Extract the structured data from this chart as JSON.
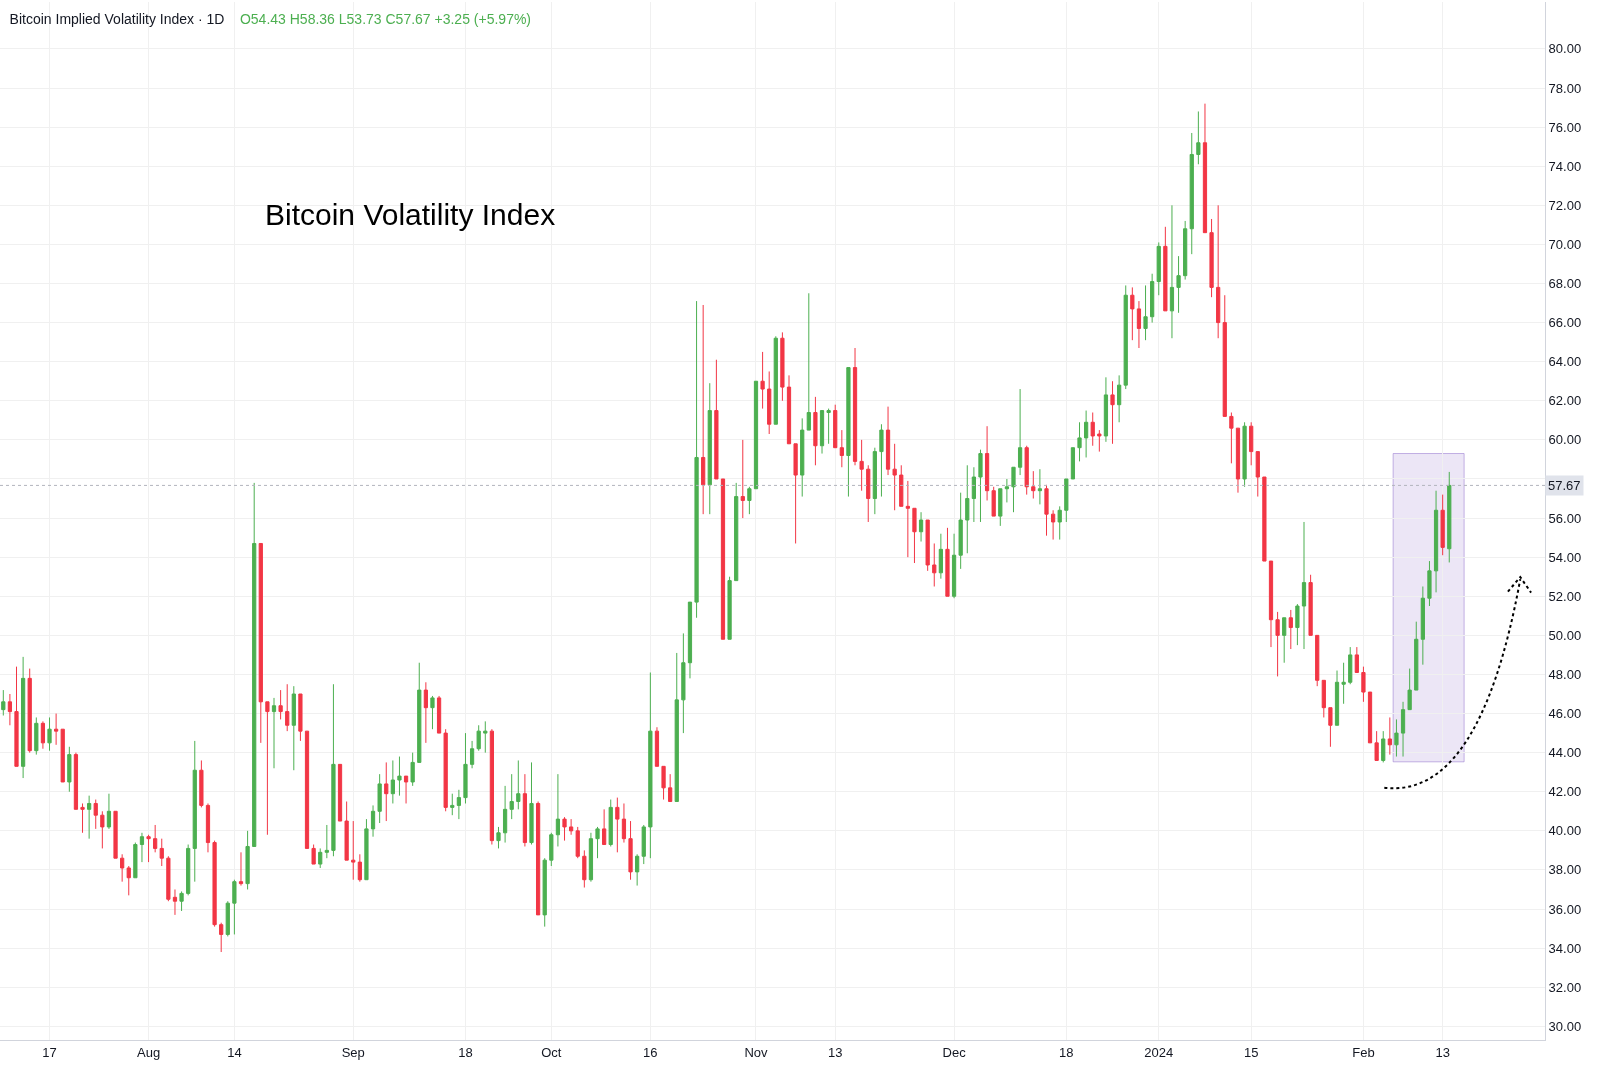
{
  "chart_data": {
    "type": "candlestick",
    "title": "Bitcoin Implied Volatility Index · 1D",
    "subtitle": "O54.43 H58.36 L53.73 C57.67 +3.25 (+5.97%)",
    "annotations": [
      "Bitcoin Volatility Index"
    ],
    "x": [
      "2023-07-10",
      "2023-07-11",
      "2023-07-12",
      "2023-07-13",
      "2023-07-14",
      "2023-07-15",
      "2023-07-16",
      "2023-07-17",
      "2023-07-18",
      "2023-07-19",
      "2023-07-20",
      "2023-07-21",
      "2023-07-22",
      "2023-07-23",
      "2023-07-24",
      "2023-07-25",
      "2023-07-26",
      "2023-07-27",
      "2023-07-28",
      "2023-07-29",
      "2023-07-30",
      "2023-07-31",
      "2023-08-01",
      "2023-08-02",
      "2023-08-03",
      "2023-08-04",
      "2023-08-05",
      "2023-08-06",
      "2023-08-07",
      "2023-08-08",
      "2023-08-09",
      "2023-08-10",
      "2023-08-11",
      "2023-08-12",
      "2023-08-13",
      "2023-08-14",
      "2023-08-15",
      "2023-08-16",
      "2023-08-17",
      "2023-08-18",
      "2023-08-19",
      "2023-08-20",
      "2023-08-21",
      "2023-08-22",
      "2023-08-23",
      "2023-08-24",
      "2023-08-25",
      "2023-08-26",
      "2023-08-27",
      "2023-08-28",
      "2023-08-29",
      "2023-08-30",
      "2023-08-31",
      "2023-09-01",
      "2023-09-02",
      "2023-09-03",
      "2023-09-04",
      "2023-09-05",
      "2023-09-06",
      "2023-09-07",
      "2023-09-08",
      "2023-09-09",
      "2023-09-10",
      "2023-09-11",
      "2023-09-12",
      "2023-09-13",
      "2023-09-14",
      "2023-09-15",
      "2023-09-16",
      "2023-09-17",
      "2023-09-18",
      "2023-09-19",
      "2023-09-20",
      "2023-09-21",
      "2023-09-22",
      "2023-09-23",
      "2023-09-24",
      "2023-09-25",
      "2023-09-26",
      "2023-09-27",
      "2023-09-28",
      "2023-09-29",
      "2023-09-30",
      "2023-10-01",
      "2023-10-02",
      "2023-10-03",
      "2023-10-04",
      "2023-10-05",
      "2023-10-06",
      "2023-10-07",
      "2023-10-08",
      "2023-10-09",
      "2023-10-10",
      "2023-10-11",
      "2023-10-12",
      "2023-10-13",
      "2023-10-14",
      "2023-10-15",
      "2023-10-16",
      "2023-10-17",
      "2023-10-18",
      "2023-10-19",
      "2023-10-20",
      "2023-10-21",
      "2023-10-22",
      "2023-10-23",
      "2023-10-24",
      "2023-10-25",
      "2023-10-26",
      "2023-10-27",
      "2023-10-28",
      "2023-10-29",
      "2023-10-30",
      "2023-10-31",
      "2023-11-01",
      "2023-11-02",
      "2023-11-03",
      "2023-11-04",
      "2023-11-05",
      "2023-11-06",
      "2023-11-07",
      "2023-11-08",
      "2023-11-09",
      "2023-11-10",
      "2023-11-11",
      "2023-11-12",
      "2023-11-13",
      "2023-11-14",
      "2023-11-15",
      "2023-11-16",
      "2023-11-17",
      "2023-11-18",
      "2023-11-19",
      "2023-11-20",
      "2023-11-21",
      "2023-11-22",
      "2023-11-23",
      "2023-11-24",
      "2023-11-25",
      "2023-11-26",
      "2023-11-27",
      "2023-11-28",
      "2023-11-29",
      "2023-11-30",
      "2023-12-01",
      "2023-12-02",
      "2023-12-03",
      "2023-12-04",
      "2023-12-05",
      "2023-12-06",
      "2023-12-07",
      "2023-12-08",
      "2023-12-09",
      "2023-12-10",
      "2023-12-11",
      "2023-12-12",
      "2023-12-13",
      "2023-12-14",
      "2023-12-15",
      "2023-12-16",
      "2023-12-17",
      "2023-12-18",
      "2023-12-19",
      "2023-12-20",
      "2023-12-21",
      "2023-12-22",
      "2023-12-23",
      "2023-12-24",
      "2023-12-25",
      "2023-12-26",
      "2023-12-27",
      "2023-12-28",
      "2023-12-29",
      "2023-12-30",
      "2023-12-31",
      "2024-01-01",
      "2024-01-02",
      "2024-01-03",
      "2024-01-04",
      "2024-01-05",
      "2024-01-06",
      "2024-01-07",
      "2024-01-08",
      "2024-01-09",
      "2024-01-10",
      "2024-01-11",
      "2024-01-12",
      "2024-01-13",
      "2024-01-14",
      "2024-01-15",
      "2024-01-16",
      "2024-01-17",
      "2024-01-18",
      "2024-01-19",
      "2024-01-20",
      "2024-01-21",
      "2024-01-22",
      "2024-01-23",
      "2024-01-24",
      "2024-01-25",
      "2024-01-26",
      "2024-01-27",
      "2024-01-28",
      "2024-01-29",
      "2024-01-30",
      "2024-01-31",
      "2024-02-01",
      "2024-02-02",
      "2024-02-03",
      "2024-02-04",
      "2024-02-05",
      "2024-02-06",
      "2024-02-07",
      "2024-02-08",
      "2024-02-09",
      "2024-02-10",
      "2024-02-11",
      "2024-02-12",
      "2024-02-13",
      "2024-02-14"
    ],
    "ohlc": [
      [
        46.2,
        47.2,
        45.9,
        46.6
      ],
      [
        46.6,
        47.0,
        45.4,
        46.1
      ],
      [
        46.1,
        48.4,
        43.3,
        43.3
      ],
      [
        43.3,
        48.9,
        42.7,
        47.8
      ],
      [
        47.8,
        48.3,
        44.0,
        44.1
      ],
      [
        44.1,
        45.8,
        43.9,
        45.5
      ],
      [
        45.5,
        45.6,
        44.2,
        44.5
      ],
      [
        44.5,
        45.8,
        44.1,
        45.2
      ],
      [
        45.2,
        46.0,
        44.4,
        45.1
      ],
      [
        45.2,
        45.2,
        42.5,
        42.5
      ],
      [
        42.5,
        44.3,
        42.0,
        43.9
      ],
      [
        43.9,
        44.0,
        41.1,
        41.1
      ],
      [
        41.2,
        41.4,
        39.9,
        41.1
      ],
      [
        41.1,
        41.8,
        39.6,
        41.4
      ],
      [
        41.4,
        41.6,
        40.1,
        40.8
      ],
      [
        40.8,
        41.0,
        39.1,
        40.2
      ],
      [
        40.2,
        41.9,
        40.1,
        41.0
      ],
      [
        41.0,
        41.0,
        38.6,
        38.6
      ],
      [
        38.6,
        38.8,
        37.4,
        38.1
      ],
      [
        38.1,
        38.2,
        36.7,
        37.6
      ],
      [
        37.6,
        39.4,
        37.6,
        39.3
      ],
      [
        39.3,
        39.9,
        38.4,
        39.7
      ],
      [
        39.7,
        39.8,
        38.4,
        39.6
      ],
      [
        39.6,
        40.3,
        38.9,
        39.1
      ],
      [
        39.1,
        39.6,
        38.2,
        38.6
      ],
      [
        38.6,
        38.7,
        36.4,
        36.5
      ],
      [
        36.6,
        37.0,
        35.7,
        36.4
      ],
      [
        36.4,
        36.9,
        35.9,
        36.8
      ],
      [
        36.8,
        39.3,
        36.7,
        39.1
      ],
      [
        39.1,
        44.6,
        37.4,
        43.1
      ],
      [
        43.1,
        43.6,
        41.2,
        41.3
      ],
      [
        41.3,
        41.4,
        38.9,
        39.4
      ],
      [
        39.4,
        39.5,
        35.1,
        35.2
      ],
      [
        35.2,
        35.3,
        33.8,
        34.7
      ],
      [
        34.7,
        36.4,
        34.6,
        36.3
      ],
      [
        36.3,
        37.5,
        34.7,
        37.4
      ],
      [
        37.4,
        38.9,
        37.2,
        37.3
      ],
      [
        37.3,
        40.0,
        37.0,
        39.2
      ],
      [
        39.2,
        57.8,
        39.2,
        54.7
      ],
      [
        54.7,
        54.7,
        44.5,
        46.6
      ],
      [
        46.6,
        46.6,
        39.8,
        46.1
      ],
      [
        46.1,
        46.8,
        43.2,
        46.4
      ],
      [
        46.4,
        47.2,
        45.7,
        46.1
      ],
      [
        46.1,
        47.5,
        45.1,
        45.4
      ],
      [
        45.4,
        47.4,
        43.1,
        47.0
      ],
      [
        47.0,
        47.0,
        44.6,
        45.1
      ],
      [
        45.1,
        45.1,
        39.1,
        39.1
      ],
      [
        39.1,
        39.3,
        38.3,
        38.3
      ],
      [
        38.3,
        39.1,
        38.1,
        38.9
      ],
      [
        38.9,
        40.3,
        38.6,
        39.0
      ],
      [
        39.0,
        47.5,
        38.7,
        43.4
      ],
      [
        43.4,
        43.4,
        40.5,
        40.5
      ],
      [
        40.5,
        41.5,
        38.5,
        38.5
      ],
      [
        38.5,
        40.5,
        37.5,
        38.4
      ],
      [
        38.4,
        38.8,
        37.4,
        37.5
      ],
      [
        37.5,
        40.6,
        37.5,
        40.1
      ],
      [
        40.1,
        41.3,
        39.7,
        41.0
      ],
      [
        41.0,
        42.9,
        40.4,
        42.4
      ],
      [
        42.4,
        43.5,
        40.5,
        41.9
      ],
      [
        41.9,
        43.6,
        41.4,
        42.6
      ],
      [
        42.6,
        43.8,
        41.8,
        42.8
      ],
      [
        42.8,
        42.8,
        41.4,
        42.5
      ],
      [
        42.5,
        44.0,
        42.3,
        43.5
      ],
      [
        43.5,
        48.6,
        43.5,
        47.2
      ],
      [
        47.2,
        47.6,
        44.5,
        46.3
      ],
      [
        46.3,
        46.9,
        45.2,
        46.8
      ],
      [
        46.8,
        46.9,
        45.0,
        45.0
      ],
      [
        45.0,
        45.2,
        41.0,
        41.2
      ],
      [
        41.2,
        41.9,
        40.8,
        41.3
      ],
      [
        41.3,
        42.1,
        40.6,
        41.7
      ],
      [
        41.7,
        45.0,
        41.4,
        43.4
      ],
      [
        43.4,
        44.6,
        43.2,
        44.2
      ],
      [
        44.2,
        45.4,
        44.1,
        45.1
      ],
      [
        45.0,
        45.6,
        44.0,
        45.1
      ],
      [
        45.1,
        45.2,
        39.3,
        39.5
      ],
      [
        39.5,
        40.2,
        39.1,
        39.9
      ],
      [
        39.9,
        42.3,
        39.4,
        41.1
      ],
      [
        41.1,
        42.9,
        40.6,
        41.5
      ],
      [
        41.5,
        43.6,
        41.1,
        41.9
      ],
      [
        41.9,
        42.9,
        39.2,
        39.4
      ],
      [
        39.4,
        43.5,
        39.3,
        41.4
      ],
      [
        41.4,
        41.5,
        35.7,
        35.7
      ],
      [
        35.7,
        38.6,
        35.1,
        38.5
      ],
      [
        38.5,
        39.9,
        38.2,
        39.8
      ],
      [
        39.8,
        42.9,
        39.2,
        40.6
      ],
      [
        40.6,
        40.7,
        39.5,
        40.2
      ],
      [
        40.2,
        40.6,
        39.8,
        40.0
      ],
      [
        40.0,
        40.2,
        38.6,
        38.7
      ],
      [
        38.7,
        39.0,
        37.1,
        37.5
      ],
      [
        37.5,
        39.9,
        37.4,
        39.6
      ],
      [
        39.6,
        40.2,
        38.6,
        40.1
      ],
      [
        40.1,
        41.1,
        39.3,
        39.3
      ],
      [
        39.3,
        41.6,
        39.2,
        41.2
      ],
      [
        41.2,
        41.7,
        38.9,
        40.6
      ],
      [
        40.6,
        41.4,
        39.4,
        39.6
      ],
      [
        39.6,
        40.5,
        37.5,
        37.9
      ],
      [
        37.9,
        38.8,
        37.2,
        38.7
      ],
      [
        38.7,
        40.3,
        38.3,
        40.2
      ],
      [
        40.2,
        48.1,
        38.6,
        45.1
      ],
      [
        45.1,
        45.3,
        43.3,
        43.3
      ],
      [
        43.3,
        43.3,
        41.6,
        42.2
      ],
      [
        42.2,
        42.9,
        41.5,
        41.5
      ],
      [
        41.5,
        49.1,
        41.5,
        46.7
      ],
      [
        46.7,
        50.1,
        45.0,
        48.6
      ],
      [
        48.6,
        51.7,
        47.8,
        51.7
      ],
      [
        51.7,
        67.1,
        50.9,
        59.1
      ],
      [
        59.1,
        66.9,
        56.2,
        57.7
      ],
      [
        57.7,
        62.9,
        56.2,
        61.5
      ],
      [
        61.5,
        64.1,
        58.0,
        58.0
      ],
      [
        58.0,
        58.0,
        49.8,
        49.8
      ],
      [
        49.8,
        53.0,
        49.8,
        52.8
      ],
      [
        52.8,
        57.8,
        52.8,
        57.1
      ],
      [
        57.1,
        60.0,
        56.0,
        56.9
      ],
      [
        56.9,
        57.6,
        56.2,
        57.5
      ],
      [
        57.5,
        63.0,
        57.5,
        63.0
      ],
      [
        63.0,
        64.5,
        61.6,
        62.6
      ],
      [
        62.6,
        63.5,
        60.3,
        60.8
      ],
      [
        60.8,
        65.3,
        60.8,
        65.2
      ],
      [
        65.2,
        65.5,
        62.0,
        62.7
      ],
      [
        62.7,
        63.3,
        59.8,
        59.8
      ],
      [
        59.8,
        59.8,
        54.7,
        58.2
      ],
      [
        58.2,
        61.1,
        57.1,
        60.5
      ],
      [
        60.5,
        67.5,
        60.5,
        61.4
      ],
      [
        61.4,
        62.2,
        58.7,
        59.7
      ],
      [
        59.7,
        61.5,
        59.3,
        61.5
      ],
      [
        61.4,
        61.6,
        59.8,
        61.5
      ],
      [
        61.5,
        61.8,
        59.6,
        59.6
      ],
      [
        59.6,
        60.5,
        58.6,
        59.2
      ],
      [
        59.2,
        63.7,
        57.1,
        63.7
      ],
      [
        63.7,
        64.7,
        58.7,
        58.9
      ],
      [
        58.9,
        60.0,
        57.4,
        58.5
      ],
      [
        58.5,
        58.7,
        55.8,
        57.0
      ],
      [
        57.0,
        59.6,
        56.2,
        59.4
      ],
      [
        59.4,
        60.8,
        57.1,
        60.5
      ],
      [
        60.5,
        61.7,
        58.2,
        58.5
      ],
      [
        58.5,
        59.8,
        56.4,
        58.2
      ],
      [
        58.2,
        58.7,
        56.6,
        56.6
      ],
      [
        56.6,
        57.9,
        54.0,
        56.5
      ],
      [
        56.5,
        56.5,
        53.7,
        55.3
      ],
      [
        55.3,
        56.3,
        54.8,
        55.9
      ],
      [
        55.9,
        55.9,
        53.3,
        53.6
      ],
      [
        53.6,
        54.7,
        52.5,
        53.2
      ],
      [
        53.2,
        55.2,
        52.9,
        54.4
      ],
      [
        54.4,
        55.5,
        52.0,
        52.0
      ],
      [
        52.0,
        55.2,
        51.9,
        54.1
      ],
      [
        54.1,
        57.3,
        53.4,
        55.9
      ],
      [
        55.9,
        58.7,
        54.2,
        57.0
      ],
      [
        57.0,
        58.6,
        55.8,
        58.1
      ],
      [
        58.1,
        59.5,
        55.8,
        59.3
      ],
      [
        59.3,
        60.7,
        56.9,
        57.4
      ],
      [
        57.4,
        57.6,
        56.1,
        56.1
      ],
      [
        56.1,
        57.5,
        55.6,
        57.5
      ],
      [
        57.5,
        58.0,
        56.8,
        57.6
      ],
      [
        57.6,
        58.6,
        56.3,
        58.6
      ],
      [
        58.6,
        62.6,
        58.2,
        59.6
      ],
      [
        59.6,
        59.7,
        57.2,
        57.6
      ],
      [
        57.6,
        58.4,
        57.0,
        57.4
      ],
      [
        57.4,
        58.5,
        56.7,
        57.5
      ],
      [
        57.5,
        57.7,
        55.1,
        56.2
      ],
      [
        56.2,
        56.4,
        54.9,
        55.8
      ],
      [
        55.8,
        56.6,
        54.9,
        56.4
      ],
      [
        56.4,
        58.0,
        55.8,
        58.0
      ],
      [
        58.0,
        59.6,
        58.0,
        59.6
      ],
      [
        59.6,
        60.9,
        58.9,
        60.1
      ],
      [
        60.1,
        61.5,
        59.1,
        60.9
      ],
      [
        60.9,
        61.4,
        59.7,
        60.2
      ],
      [
        60.3,
        60.5,
        59.4,
        60.2
      ],
      [
        60.2,
        63.2,
        59.9,
        62.3
      ],
      [
        62.3,
        63.0,
        59.8,
        61.8
      ],
      [
        61.8,
        63.3,
        60.9,
        62.8
      ],
      [
        62.8,
        67.9,
        62.6,
        67.4
      ],
      [
        67.4,
        67.8,
        65.1,
        66.7
      ],
      [
        66.7,
        67.1,
        64.7,
        65.7
      ],
      [
        65.7,
        67.9,
        65.1,
        66.3
      ],
      [
        66.3,
        68.5,
        66.0,
        68.1
      ],
      [
        68.1,
        70.1,
        67.4,
        69.9
      ],
      [
        69.9,
        70.9,
        66.6,
        66.6
      ],
      [
        66.6,
        72.0,
        65.2,
        67.8
      ],
      [
        67.8,
        69.4,
        66.5,
        68.4
      ],
      [
        68.4,
        71.2,
        68.2,
        70.8
      ],
      [
        70.8,
        75.7,
        69.5,
        74.6
      ],
      [
        74.6,
        76.8,
        74.1,
        75.2
      ],
      [
        75.2,
        77.2,
        70.6,
        70.6
      ],
      [
        70.6,
        71.3,
        67.3,
        67.8
      ],
      [
        67.8,
        72.0,
        65.2,
        66.0
      ],
      [
        66.0,
        67.4,
        61.2,
        61.2
      ],
      [
        61.2,
        61.4,
        58.8,
        60.6
      ],
      [
        60.6,
        60.6,
        57.3,
        58.0
      ],
      [
        58.0,
        60.9,
        57.6,
        60.7
      ],
      [
        60.7,
        60.9,
        58.7,
        59.4
      ],
      [
        59.4,
        59.4,
        57.1,
        58.1
      ],
      [
        58.1,
        58.1,
        53.8,
        53.8
      ],
      [
        53.8,
        53.8,
        49.4,
        50.8
      ],
      [
        50.8,
        51.2,
        47.9,
        50.0
      ],
      [
        50.0,
        50.9,
        48.6,
        50.9
      ],
      [
        50.9,
        51.3,
        49.3,
        50.4
      ],
      [
        50.4,
        51.6,
        49.5,
        51.5
      ],
      [
        51.5,
        55.8,
        49.3,
        52.7
      ],
      [
        52.7,
        53.1,
        50.0,
        50.0
      ],
      [
        50.0,
        50.0,
        47.4,
        47.7
      ],
      [
        47.7,
        47.7,
        45.8,
        46.3
      ],
      [
        46.3,
        46.3,
        44.3,
        45.4
      ],
      [
        45.4,
        48.2,
        45.4,
        47.6
      ],
      [
        47.5,
        48.6,
        46.5,
        47.6
      ],
      [
        47.6,
        49.4,
        47.5,
        49.0
      ],
      [
        49.0,
        49.4,
        48.1,
        48.1
      ],
      [
        48.1,
        48.4,
        46.6,
        47.1
      ],
      [
        47.1,
        47.1,
        44.5,
        44.5
      ],
      [
        44.5,
        45.1,
        43.6,
        43.6
      ],
      [
        43.6,
        45.1,
        43.5,
        44.7
      ],
      [
        44.7,
        45.8,
        43.9,
        44.4
      ],
      [
        44.4,
        45.7,
        43.8,
        45.0
      ],
      [
        45.0,
        46.6,
        43.8,
        46.2
      ],
      [
        46.2,
        48.3,
        46.2,
        47.2
      ],
      [
        47.2,
        50.7,
        47.2,
        49.8
      ],
      [
        49.8,
        52.5,
        48.5,
        51.9
      ],
      [
        51.9,
        53.8,
        51.5,
        53.3
      ],
      [
        53.3,
        57.4,
        52.2,
        56.4
      ],
      [
        56.4,
        57.2,
        54.1,
        54.5
      ],
      [
        54.43,
        58.36,
        53.73,
        57.67
      ]
    ],
    "colors": [
      "#4caf50",
      "#f23645",
      "#f23645",
      "#4caf50",
      "#f23645",
      "#4caf50",
      "#f23645",
      "#4caf50",
      "#f23645",
      "#f23645",
      "#4caf50",
      "#f23645",
      "#f23645",
      "#4caf50",
      "#f23645",
      "#f23645",
      "#4caf50",
      "#f23645",
      "#f23645",
      "#f23645",
      "#4caf50",
      "#4caf50",
      "#f23645",
      "#f23645",
      "#f23645",
      "#f23645",
      "#f23645",
      "#4caf50",
      "#4caf50",
      "#4caf50",
      "#f23645",
      "#f23645",
      "#f23645",
      "#f23645",
      "#4caf50",
      "#4caf50",
      "#f23645",
      "#4caf50",
      "#4caf50",
      "#f23645",
      "#f23645",
      "#4caf50",
      "#f23645",
      "#f23645",
      "#4caf50",
      "#f23645",
      "#f23645",
      "#f23645",
      "#4caf50",
      "#4caf50",
      "#4caf50",
      "#f23645",
      "#f23645",
      "#f23645",
      "#f23645",
      "#4caf50",
      "#4caf50",
      "#4caf50",
      "#f23645",
      "#4caf50",
      "#4caf50",
      "#f23645",
      "#4caf50",
      "#4caf50",
      "#f23645",
      "#4caf50",
      "#f23645",
      "#f23645",
      "#4caf50",
      "#4caf50",
      "#4caf50",
      "#4caf50",
      "#4caf50",
      "#4caf50",
      "#f23645",
      "#4caf50",
      "#4caf50",
      "#4caf50",
      "#4caf50",
      "#f23645",
      "#4caf50",
      "#f23645",
      "#4caf50",
      "#4caf50",
      "#4caf50",
      "#f23645",
      "#f23645",
      "#f23645",
      "#f23645",
      "#4caf50",
      "#4caf50",
      "#f23645",
      "#4caf50",
      "#f23645",
      "#f23645",
      "#f23645",
      "#4caf50",
      "#4caf50",
      "#4caf50",
      "#f23645",
      "#f23645",
      "#f23645",
      "#4caf50",
      "#4caf50",
      "#4caf50",
      "#4caf50",
      "#f23645",
      "#4caf50",
      "#f23645",
      "#f23645",
      "#4caf50",
      "#4caf50",
      "#f23645",
      "#4caf50",
      "#4caf50",
      "#f23645",
      "#f23645",
      "#4caf50",
      "#f23645",
      "#f23645",
      "#f23645",
      "#4caf50",
      "#4caf50",
      "#f23645",
      "#4caf50",
      "#4caf50",
      "#f23645",
      "#f23645",
      "#4caf50",
      "#f23645",
      "#f23645",
      "#f23645",
      "#4caf50",
      "#4caf50",
      "#f23645",
      "#f23645",
      "#f23645",
      "#f23645",
      "#f23645",
      "#4caf50",
      "#f23645",
      "#f23645",
      "#4caf50",
      "#f23645",
      "#4caf50",
      "#4caf50",
      "#4caf50",
      "#4caf50",
      "#4caf50",
      "#f23645",
      "#f23645",
      "#4caf50",
      "#4caf50",
      "#4caf50",
      "#4caf50",
      "#f23645",
      "#f23645",
      "#4caf50",
      "#f23645",
      "#f23645",
      "#4caf50",
      "#4caf50",
      "#4caf50",
      "#4caf50",
      "#4caf50",
      "#f23645",
      "#f23645",
      "#4caf50",
      "#f23645",
      "#4caf50",
      "#4caf50",
      "#f23645",
      "#f23645",
      "#4caf50",
      "#4caf50",
      "#4caf50",
      "#f23645",
      "#4caf50",
      "#4caf50",
      "#4caf50",
      "#4caf50",
      "#4caf50",
      "#f23645",
      "#f23645",
      "#f23645",
      "#f23645",
      "#f23645",
      "#f23645",
      "#4caf50",
      "#f23645",
      "#f23645",
      "#f23645",
      "#f23645",
      "#f23645",
      "#4caf50",
      "#f23645",
      "#4caf50",
      "#4caf50",
      "#f23645",
      "#f23645",
      "#f23645",
      "#f23645",
      "#4caf50",
      "#4caf50",
      "#4caf50",
      "#f23645",
      "#f23645",
      "#f23645",
      "#f23645",
      "#4caf50",
      "#f23645",
      "#4caf50",
      "#4caf50",
      "#4caf50",
      "#4caf50",
      "#4caf50",
      "#4caf50",
      "#4caf50",
      "#f23645",
      "#4caf50"
    ],
    "xlim": [
      "2023-07-09T12:00",
      "2024-02-28T12:00"
    ],
    "xticks": [
      {
        "value": "2023-07-17",
        "label": "17"
      },
      {
        "value": "2023-08-01",
        "label": "Aug"
      },
      {
        "value": "2023-08-14",
        "label": "14"
      },
      {
        "value": "2023-09-01",
        "label": "Sep"
      },
      {
        "value": "2023-09-18",
        "label": "18"
      },
      {
        "value": "2023-10-01",
        "label": "Oct"
      },
      {
        "value": "2023-10-16",
        "label": "16"
      },
      {
        "value": "2023-11-01",
        "label": "Nov"
      },
      {
        "value": "2023-11-13",
        "label": "13"
      },
      {
        "value": "2023-12-01",
        "label": "Dec"
      },
      {
        "value": "2023-12-18",
        "label": "18"
      },
      {
        "value": "2024-01-01",
        "label": "2024"
      },
      {
        "value": "2024-01-15",
        "label": "15"
      },
      {
        "value": "2024-02-01",
        "label": "Feb"
      },
      {
        "value": "2024-02-13",
        "label": "13"
      }
    ],
    "ylim": [
      29.3,
      82.4
    ],
    "yticks": [
      {
        "value": 30,
        "label": "30.00"
      },
      {
        "value": 32,
        "label": "32.00"
      },
      {
        "value": 34,
        "label": "34.00"
      },
      {
        "value": 36,
        "label": "36.00"
      },
      {
        "value": 38,
        "label": "38.00"
      },
      {
        "value": 40,
        "label": "40.00"
      },
      {
        "value": 42,
        "label": "42.00"
      },
      {
        "value": 44,
        "label": "44.00"
      },
      {
        "value": 46,
        "label": "46.00"
      },
      {
        "value": 48,
        "label": "48.00"
      },
      {
        "value": 50,
        "label": "50.00"
      },
      {
        "value": 52,
        "label": "52.00"
      },
      {
        "value": 54,
        "label": "54.00"
      },
      {
        "value": 56,
        "label": "56.00"
      },
      {
        "value": 58,
        "label": null
      },
      {
        "value": 60,
        "label": "60.00"
      },
      {
        "value": 62,
        "label": "62.00"
      },
      {
        "value": 64,
        "label": "64.00"
      },
      {
        "value": 66,
        "label": "66.00"
      },
      {
        "value": 68,
        "label": "68.00"
      },
      {
        "value": 70,
        "label": "70.00"
      },
      {
        "value": 72,
        "label": "72.00"
      },
      {
        "value": 74,
        "label": "74.00"
      },
      {
        "value": 76,
        "label": "76.00"
      },
      {
        "value": 78,
        "label": "78.00"
      },
      {
        "value": 80,
        "label": "80.00"
      }
    ],
    "ref_lines": [
      {
        "axis": "y",
        "value": 57.67,
        "label": "57.67",
        "color": "#b2b5be",
        "line_style": "dotted"
      }
    ],
    "bands": [
      {
        "axis": "x",
        "from": "2024-02-05T12:00",
        "to": "2024-02-16T06:00",
        "color": "#9575cd"
      }
    ],
    "grid": true
  }
}
